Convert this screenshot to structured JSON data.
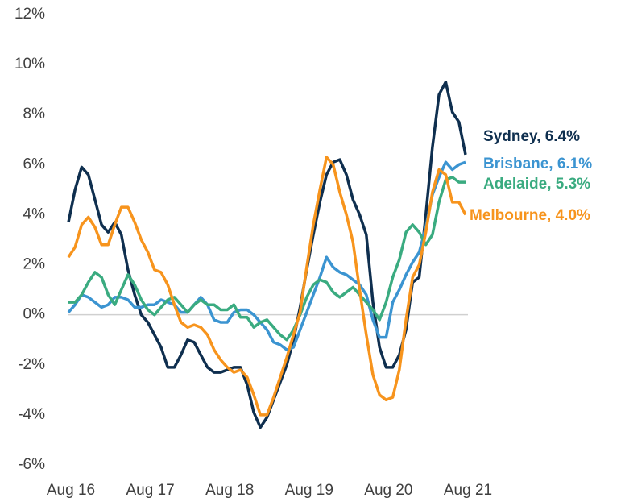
{
  "chart_data": {
    "type": "line",
    "categories": [
      "Aug 16",
      null,
      null,
      null,
      null,
      null,
      null,
      null,
      null,
      null,
      null,
      null,
      "Aug 17",
      null,
      null,
      null,
      null,
      null,
      null,
      null,
      null,
      null,
      null,
      null,
      "Aug 18",
      null,
      null,
      null,
      null,
      null,
      null,
      null,
      null,
      null,
      null,
      null,
      "Aug 19",
      null,
      null,
      null,
      null,
      null,
      null,
      null,
      null,
      null,
      null,
      null,
      "Aug 20",
      null,
      null,
      null,
      null,
      null,
      null,
      null,
      null,
      null,
      null,
      null,
      "Aug 21"
    ],
    "ylim": [
      -6,
      12
    ],
    "yticks": [
      {
        "value": -6,
        "label": "-6%"
      },
      {
        "value": -4,
        "label": "-4%"
      },
      {
        "value": -2,
        "label": "-2%"
      },
      {
        "value": 0,
        "label": "0%"
      },
      {
        "value": 2,
        "label": "2%"
      },
      {
        "value": 4,
        "label": "4%"
      },
      {
        "value": 6,
        "label": "6%"
      },
      {
        "value": 8,
        "label": "8%"
      },
      {
        "value": 10,
        "label": "10%"
      },
      {
        "value": 12,
        "label": "12%"
      }
    ],
    "series": [
      {
        "name": "Sydney, 6.4%",
        "color": "#0f2f4f",
        "values": [
          3.7,
          5.0,
          5.9,
          5.6,
          4.6,
          3.6,
          3.3,
          3.7,
          3.2,
          1.8,
          0.8,
          0.0,
          -0.3,
          -0.8,
          -1.3,
          -2.1,
          -2.1,
          -1.6,
          -1.0,
          -1.1,
          -1.6,
          -2.1,
          -2.3,
          -2.3,
          -2.2,
          -2.1,
          -2.1,
          -2.8,
          -3.9,
          -4.5,
          -4.1,
          -3.4,
          -2.7,
          -2.0,
          -1.0,
          0.3,
          1.8,
          3.2,
          4.5,
          5.6,
          6.1,
          6.2,
          5.6,
          4.6,
          4.0,
          3.2,
          0.5,
          -1.3,
          -2.1,
          -2.1,
          -1.6,
          -0.6,
          1.3,
          1.5,
          4.0,
          6.7,
          8.8,
          9.3,
          8.1,
          7.7,
          6.4
        ]
      },
      {
        "name": "Brisbane, 6.1%",
        "color": "#3b94d1",
        "values": [
          0.1,
          0.4,
          0.8,
          0.7,
          0.5,
          0.3,
          0.4,
          0.7,
          0.7,
          0.6,
          0.3,
          0.3,
          0.4,
          0.4,
          0.6,
          0.5,
          0.4,
          0.1,
          0.1,
          0.4,
          0.7,
          0.4,
          -0.2,
          -0.3,
          -0.3,
          0.1,
          0.2,
          0.2,
          0.0,
          -0.3,
          -0.6,
          -1.1,
          -1.2,
          -1.4,
          -1.3,
          -0.6,
          0.1,
          0.8,
          1.5,
          2.3,
          1.9,
          1.7,
          1.6,
          1.4,
          1.2,
          0.8,
          -0.2,
          -0.9,
          -0.9,
          0.5,
          1.0,
          1.6,
          2.1,
          2.5,
          3.5,
          4.8,
          5.5,
          6.1,
          5.8,
          6.0,
          6.1
        ]
      },
      {
        "name": "Adelaide, 5.3%",
        "color": "#3aab80",
        "values": [
          0.5,
          0.5,
          0.8,
          1.3,
          1.7,
          1.5,
          0.8,
          0.4,
          1.0,
          1.6,
          1.2,
          0.6,
          0.2,
          0.0,
          0.3,
          0.6,
          0.7,
          0.4,
          0.1,
          0.4,
          0.6,
          0.4,
          0.4,
          0.2,
          0.2,
          0.4,
          -0.1,
          -0.1,
          -0.5,
          -0.3,
          -0.2,
          -0.5,
          -0.8,
          -1.0,
          -0.6,
          0.0,
          0.7,
          1.2,
          1.4,
          1.3,
          0.9,
          0.7,
          0.9,
          1.1,
          0.8,
          0.5,
          0.2,
          -0.2,
          0.5,
          1.5,
          2.2,
          3.3,
          3.6,
          3.3,
          2.8,
          3.2,
          4.5,
          5.4,
          5.5,
          5.3,
          5.3
        ]
      },
      {
        "name": "Melbourne, 4.0%",
        "color": "#f7941d",
        "values": [
          2.3,
          2.7,
          3.6,
          3.9,
          3.5,
          2.8,
          2.8,
          3.6,
          4.3,
          4.3,
          3.7,
          3.0,
          2.5,
          1.8,
          1.7,
          1.2,
          0.4,
          -0.3,
          -0.5,
          -0.4,
          -0.5,
          -0.8,
          -1.4,
          -1.8,
          -2.1,
          -2.3,
          -2.2,
          -2.5,
          -3.2,
          -4.0,
          -4.0,
          -3.3,
          -2.5,
          -1.7,
          -0.8,
          0.1,
          1.9,
          3.6,
          5.0,
          6.3,
          6.0,
          4.9,
          4.0,
          2.9,
          1.0,
          -0.8,
          -2.4,
          -3.2,
          -3.4,
          -3.3,
          -2.2,
          -0.2,
          1.5,
          2.0,
          3.3,
          4.9,
          5.8,
          5.6,
          4.5,
          4.5,
          4.0
        ]
      }
    ]
  }
}
